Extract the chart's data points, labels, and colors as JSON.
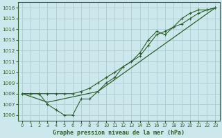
{
  "title": "Graphe pression niveau de la mer (hPa)",
  "bg_color": "#cde8ec",
  "grid_color": "#aacdd2",
  "line_color": "#2d5e2d",
  "ylim": [
    1005.5,
    1016.5
  ],
  "xlim": [
    -0.5,
    23.5
  ],
  "yticks": [
    1006,
    1007,
    1008,
    1009,
    1010,
    1011,
    1012,
    1013,
    1014,
    1015,
    1016
  ],
  "xticks": [
    0,
    1,
    2,
    3,
    4,
    5,
    6,
    7,
    8,
    9,
    10,
    11,
    12,
    13,
    14,
    15,
    16,
    17,
    18,
    19,
    20,
    21,
    22,
    23
  ],
  "series_main": {
    "x": [
      0,
      1,
      2,
      3,
      4,
      5,
      6,
      7,
      8,
      9,
      10,
      11,
      12,
      13,
      14,
      15,
      16,
      17,
      18,
      19,
      20,
      21,
      22,
      23
    ],
    "y": [
      1008.0,
      1008.0,
      1008.0,
      1007.0,
      1006.5,
      1006.0,
      1006.0,
      1007.5,
      1007.5,
      1008.2,
      1009.0,
      1009.5,
      1010.5,
      1011.0,
      1011.8,
      1013.0,
      1013.8,
      1013.5,
      1014.2,
      1015.0,
      1015.5,
      1015.8,
      1015.8,
      1016.0
    ]
  },
  "series_smooth": {
    "x": [
      0,
      1,
      2,
      3,
      4,
      5,
      6,
      7,
      8,
      9,
      10,
      11,
      12,
      13,
      14,
      15,
      16,
      17,
      18,
      19,
      20,
      21,
      22,
      23
    ],
    "y": [
      1008.0,
      1008.0,
      1008.0,
      1008.0,
      1008.0,
      1008.0,
      1008.0,
      1008.2,
      1008.5,
      1009.0,
      1009.5,
      1010.0,
      1010.5,
      1011.0,
      1011.5,
      1012.5,
      1013.5,
      1013.8,
      1014.2,
      1014.5,
      1015.0,
      1015.5,
      1015.8,
      1016.0
    ]
  },
  "series_triangle": {
    "x": [
      0,
      3,
      9,
      23
    ],
    "y": [
      1008.0,
      1007.2,
      1008.2,
      1016.0
    ]
  }
}
